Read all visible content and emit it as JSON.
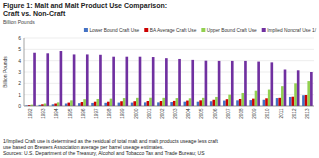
{
  "chart_data": {
    "type": "bar",
    "title": "Figure 1: Malt and Malt Product Use Comparison:",
    "subtitle": "Craft vs. Non-Craft",
    "ylabel": "Billion Pounds",
    "categories": [
      "1992",
      "1993",
      "1994",
      "1995",
      "1996",
      "1997",
      "1998",
      "1999",
      "2000",
      "2001",
      "2002",
      "2003",
      "2004",
      "2005",
      "2006",
      "2007",
      "2008",
      "2009",
      "2010",
      "2011",
      "2012",
      "2013"
    ],
    "series": [
      {
        "name": "Lower Bound Craft Use",
        "color": "#4472C4",
        "values": [
          0.05,
          0.1,
          0.15,
          0.22,
          0.25,
          0.27,
          0.28,
          0.3,
          0.3,
          0.32,
          0.32,
          0.35,
          0.38,
          0.38,
          0.42,
          0.48,
          0.5,
          0.52,
          0.55,
          0.7,
          0.8,
          0.95
        ]
      },
      {
        "name": "BA Average Craft Use",
        "color": "#CC0000",
        "values": [
          0.08,
          0.15,
          0.22,
          0.3,
          0.35,
          0.38,
          0.38,
          0.42,
          0.42,
          0.44,
          0.44,
          0.45,
          0.48,
          0.5,
          0.55,
          0.6,
          0.62,
          0.65,
          0.68,
          0.72,
          0.82,
          0.97
        ]
      },
      {
        "name": "Upper Bound Craft Use",
        "color": "#92D050",
        "values": [
          0.12,
          0.22,
          0.32,
          0.5,
          0.6,
          0.62,
          0.65,
          0.7,
          0.72,
          0.73,
          0.72,
          0.7,
          0.68,
          0.72,
          0.8,
          1.0,
          1.15,
          1.35,
          1.45,
          1.75,
          2.0,
          2.2
        ]
      },
      {
        "name": "Implied Noncraf Use 1/",
        "color": "#7030A0",
        "values": [
          4.7,
          4.65,
          4.85,
          4.55,
          4.55,
          4.52,
          4.35,
          4.35,
          4.35,
          4.32,
          4.22,
          4.15,
          4.07,
          4.0,
          3.98,
          3.98,
          3.98,
          3.92,
          3.85,
          3.22,
          3.15,
          3.0
        ]
      }
    ],
    "ylim": [
      0,
      6
    ],
    "yticks": [
      0,
      1,
      2,
      3,
      4,
      5,
      6
    ],
    "grid": true,
    "legend": "top",
    "footnote": "1/Implied Craft use is determined as the residual of total malt and malt products useage less craft\nuse based on Brewers Association average per barrel useage estimates.\nSources: U.S. Department of the Treasury, Alcohol and Tobacco Tax and Trade Bureau; US"
  }
}
